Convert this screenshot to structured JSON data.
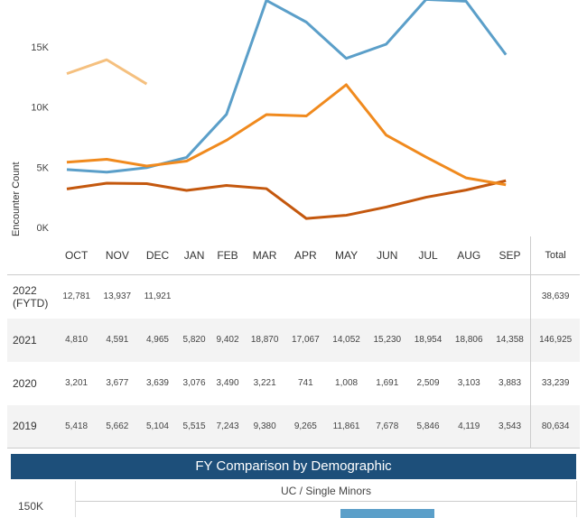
{
  "chart_data": {
    "type": "line",
    "ylabel": "Encounter Count",
    "yticks": [
      "0K",
      "5K",
      "10K",
      "15K"
    ],
    "ylim": [
      0,
      18900
    ],
    "categories": [
      "OCT",
      "NOV",
      "DEC",
      "JAN",
      "FEB",
      "MAR",
      "APR",
      "MAY",
      "JUN",
      "JUL",
      "AUG",
      "SEP"
    ],
    "series": [
      {
        "name": "2022 (FYTD)",
        "color": "#f5c07f",
        "values": [
          12781,
          13937,
          11921,
          null,
          null,
          null,
          null,
          null,
          null,
          null,
          null,
          null
        ],
        "total": "38,639"
      },
      {
        "name": "2021",
        "color": "#5b9fc9",
        "values": [
          4810,
          4591,
          4965,
          5820,
          9402,
          18870,
          17067,
          14052,
          15230,
          18954,
          18806,
          14358
        ],
        "total": "146,925"
      },
      {
        "name": "2020",
        "color": "#c4580e",
        "values": [
          3201,
          3677,
          3639,
          3076,
          3490,
          3221,
          741,
          1008,
          1691,
          2509,
          3103,
          3883
        ],
        "total": "33,239"
      },
      {
        "name": "2019",
        "color": "#f08a1e",
        "values": [
          5418,
          5662,
          5104,
          5515,
          7243,
          9380,
          9265,
          11861,
          7678,
          5846,
          4119,
          3543
        ],
        "total": "80,634"
      }
    ],
    "total_label": "Total"
  },
  "banner": "FY Comparison by Demographic",
  "panel": {
    "title": "UC / Single Minors",
    "ytick": "150K"
  }
}
